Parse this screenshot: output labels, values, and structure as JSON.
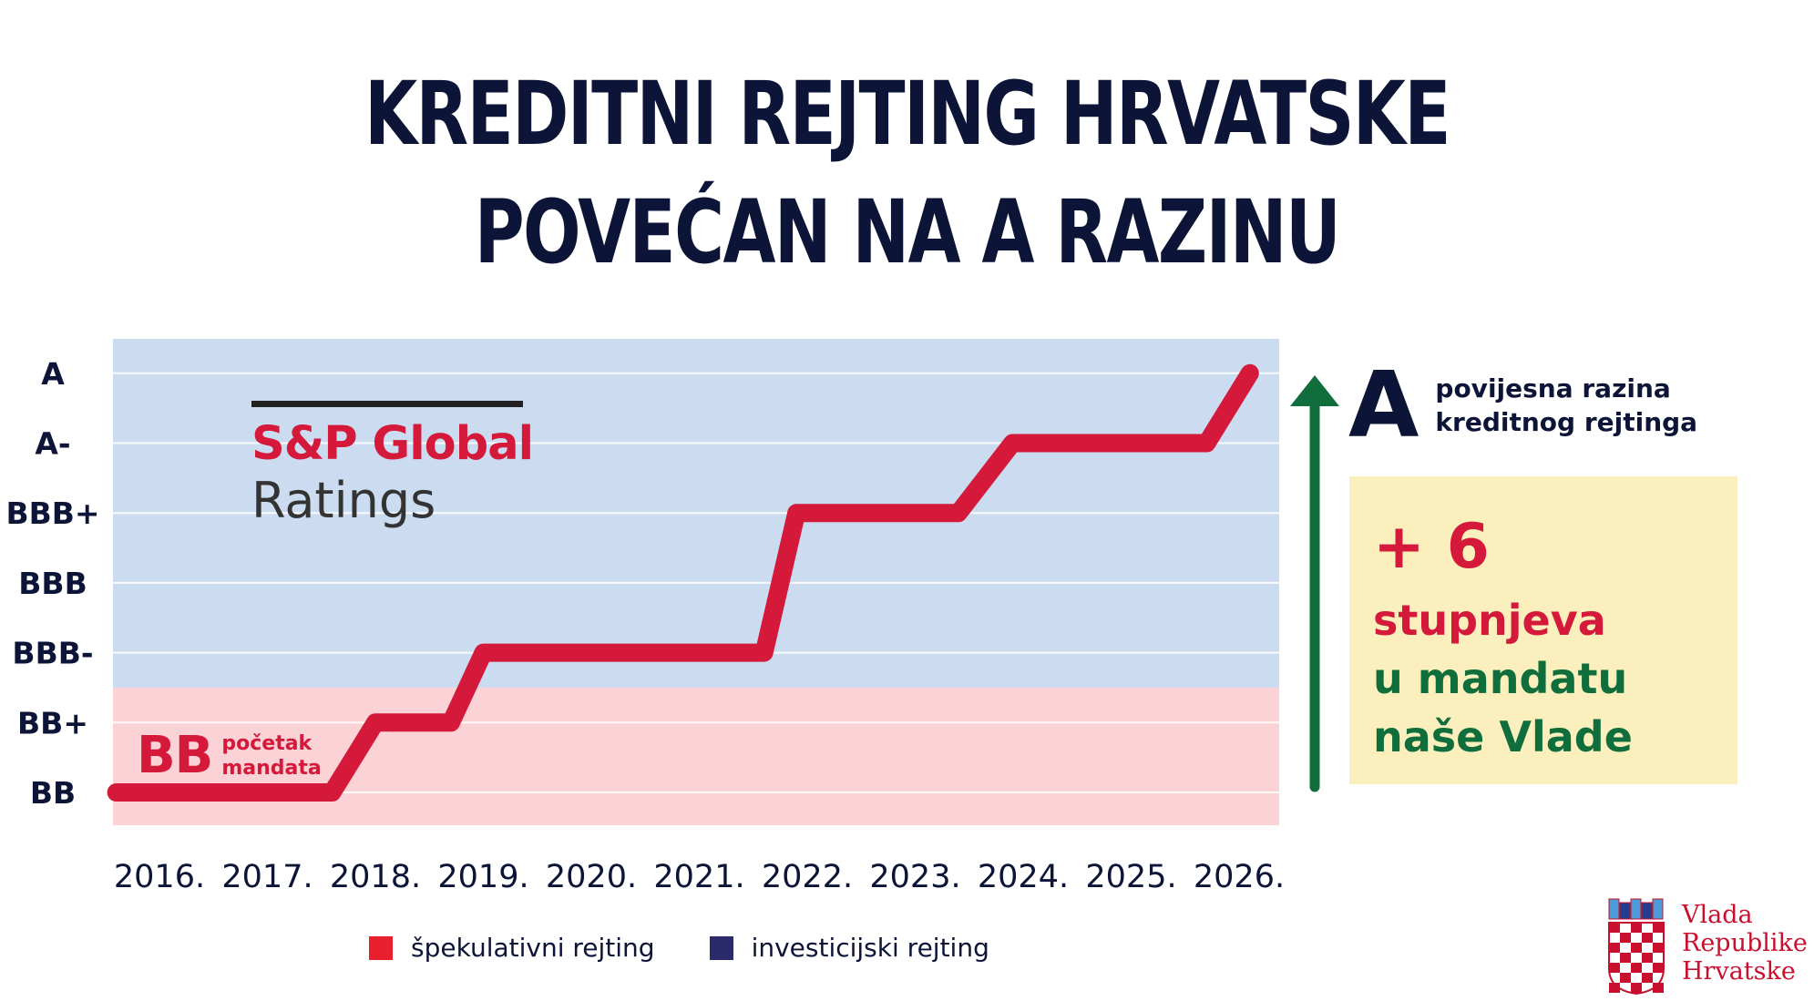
{
  "title_lines": [
    "KREDITNI REJTING HRVATSKE",
    "POVEĆAN NA A RAZINU"
  ],
  "chart_data": {
    "type": "line",
    "rating_scale": [
      "BB",
      "BB+",
      "BBB-",
      "BBB",
      "BBB+",
      "A-",
      "A"
    ],
    "y_tick_labels": [
      "A",
      "A-",
      "BBB+",
      "BBB",
      "BBB-",
      "BB+",
      "BB"
    ],
    "x_tick_labels": [
      "2016.",
      "2017.",
      "2018.",
      "2019.",
      "2020.",
      "2021.",
      "2022.",
      "2023.",
      "2024.",
      "2025.",
      "2026."
    ],
    "series": [
      {
        "points": [
          {
            "x": 2015.6,
            "y": "BB"
          },
          {
            "x": 2017.6,
            "y": "BB"
          },
          {
            "x": 2018.0,
            "y": "BB+"
          },
          {
            "x": 2018.7,
            "y": "BB+"
          },
          {
            "x": 2019.0,
            "y": "BBB-"
          },
          {
            "x": 2021.6,
            "y": "BBB-"
          },
          {
            "x": 2021.9,
            "y": "BBB+"
          },
          {
            "x": 2023.4,
            "y": "BBB+"
          },
          {
            "x": 2023.9,
            "y": "A-"
          },
          {
            "x": 2025.7,
            "y": "A-"
          },
          {
            "x": 2026.1,
            "y": "A"
          }
        ]
      }
    ],
    "bands": [
      {
        "from": "BB",
        "to": "BB+",
        "color": "#fbd2d5"
      },
      {
        "from": "BBB-",
        "to": "A",
        "color": "#ccdcf0"
      }
    ],
    "line_color": "#d4193a",
    "grid": true,
    "legend": [
      {
        "label": "špekulativni rejting",
        "color": "#e8202d"
      },
      {
        "label": "investicijski rejting",
        "color": "#2b2a6b"
      }
    ],
    "legend_position": "bottom"
  },
  "sp_logo": {
    "name": "S&P Global",
    "sub": "Ratings"
  },
  "start_note": {
    "rating": "BB",
    "line1": "početak",
    "line2": "mandata"
  },
  "historic": {
    "letter": "A",
    "line1": "povijesna razina",
    "line2": "kreditnog rejtinga"
  },
  "badge": {
    "delta": "+ 6",
    "unit": "stupnjeva",
    "line1": "u mandatu",
    "line2": "naše Vlade"
  },
  "arrow_color": "#0f6e3b",
  "government": {
    "line1": "Vlada",
    "line2": "Republike",
    "line3": "Hrvatske"
  }
}
